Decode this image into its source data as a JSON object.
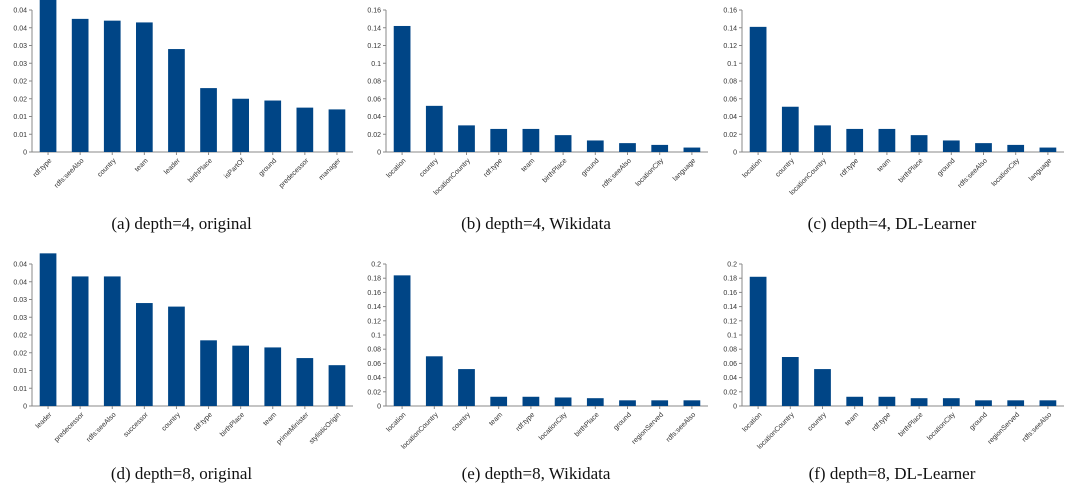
{
  "bar_color": "#004586",
  "chart_data": [
    {
      "type": "bar",
      "caption": "(a) depth=4, original",
      "categories": [
        "rdf:type",
        "rdfs:seeAlso",
        "country",
        "team",
        "leader",
        "birthPlace",
        "isPartOf",
        "ground",
        "predecessor",
        "manager"
      ],
      "values": [
        0.043,
        0.0375,
        0.037,
        0.0365,
        0.029,
        0.018,
        0.015,
        0.0145,
        0.0125,
        0.012
      ],
      "ylim": [
        0,
        0.04
      ],
      "yticks": [
        "0",
        "0.01",
        "0.01",
        "0.02",
        "0.02",
        "0.03",
        "0.03",
        "0.04",
        "0.04"
      ],
      "title": "",
      "xlabel": "",
      "ylabel": "",
      "grid": false,
      "legend": "none"
    },
    {
      "type": "bar",
      "caption": "(b) depth=4, Wikidata",
      "categories": [
        "location",
        "country",
        "locationCountry",
        "rdf:type",
        "team",
        "birthPlace",
        "ground",
        "rdfs:seeAlso",
        "locationCity",
        "language"
      ],
      "values": [
        0.142,
        0.052,
        0.03,
        0.026,
        0.026,
        0.019,
        0.013,
        0.01,
        0.008,
        0.005
      ],
      "ylim": [
        0,
        0.16
      ],
      "yticks": [
        "0",
        "0.02",
        "0.04",
        "0.06",
        "0.08",
        "0.1",
        "0.12",
        "0.14",
        "0.16"
      ],
      "title": "",
      "xlabel": "",
      "ylabel": "",
      "grid": false,
      "legend": "none"
    },
    {
      "type": "bar",
      "caption": "(c) depth=4, DL-Learner",
      "categories": [
        "location",
        "country",
        "locationCountry",
        "rdf:type",
        "team",
        "birthPlace",
        "ground",
        "rdfs:seeAlso",
        "locationCity",
        "language"
      ],
      "values": [
        0.141,
        0.051,
        0.03,
        0.026,
        0.026,
        0.019,
        0.013,
        0.01,
        0.008,
        0.005
      ],
      "ylim": [
        0,
        0.16
      ],
      "yticks": [
        "0",
        "0.02",
        "0.04",
        "0.06",
        "0.08",
        "0.1",
        "0.12",
        "0.14",
        "0.16"
      ],
      "title": "",
      "xlabel": "",
      "ylabel": "",
      "grid": false,
      "legend": "none"
    },
    {
      "type": "bar",
      "caption": "(d) depth=8, original",
      "categories": [
        "leader",
        "predecessor",
        "rdfs:seeAlso",
        "successor",
        "country",
        "rdf:type",
        "birthPlace",
        "team",
        "primeMinister",
        "stylisticOrigin"
      ],
      "values": [
        0.043,
        0.0365,
        0.0365,
        0.029,
        0.028,
        0.0185,
        0.017,
        0.0165,
        0.0135,
        0.0115
      ],
      "ylim": [
        0,
        0.04
      ],
      "yticks": [
        "0",
        "0.01",
        "0.01",
        "0.02",
        "0.02",
        "0.03",
        "0.03",
        "0.04",
        "0.04"
      ],
      "title": "",
      "xlabel": "",
      "ylabel": "",
      "grid": false,
      "legend": "none"
    },
    {
      "type": "bar",
      "caption": "(e) depth=8, Wikidata",
      "categories": [
        "location",
        "locationCountry",
        "country",
        "team",
        "rdf:type",
        "locationCity",
        "birthPlace",
        "ground",
        "regionServed",
        "rdfs:seeAlso"
      ],
      "values": [
        0.184,
        0.07,
        0.052,
        0.013,
        0.013,
        0.012,
        0.011,
        0.008,
        0.008,
        0.008
      ],
      "ylim": [
        0,
        0.2
      ],
      "yticks": [
        "0",
        "0.02",
        "0.04",
        "0.06",
        "0.08",
        "0.1",
        "0.12",
        "0.14",
        "0.16",
        "0.18",
        "0.2"
      ],
      "title": "",
      "xlabel": "",
      "ylabel": "",
      "grid": false,
      "legend": "none"
    },
    {
      "type": "bar",
      "caption": "(f) depth=8, DL-Learner",
      "categories": [
        "location",
        "locationCountry",
        "country",
        "team",
        "rdf:type",
        "birthPlace",
        "locationCity",
        "ground",
        "regionServed",
        "rdfs:seeAlso"
      ],
      "values": [
        0.182,
        0.069,
        0.052,
        0.013,
        0.013,
        0.011,
        0.011,
        0.008,
        0.008,
        0.008
      ],
      "ylim": [
        0,
        0.2
      ],
      "yticks": [
        "0",
        "0.02",
        "0.04",
        "0.06",
        "0.08",
        "0.1",
        "0.12",
        "0.14",
        "0.16",
        "0.18",
        "0.2"
      ],
      "title": "",
      "xlabel": "",
      "ylabel": "",
      "grid": false,
      "legend": "none"
    }
  ]
}
